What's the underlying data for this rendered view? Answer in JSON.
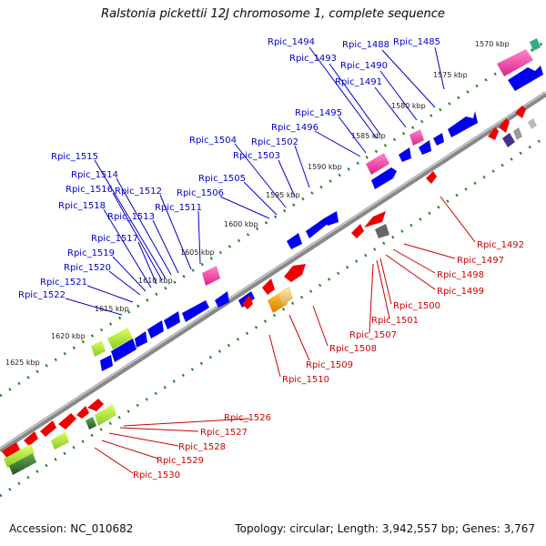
{
  "title": "Ralstonia pickettii 12J chromosome 1, complete sequence",
  "accession": "Accession: NC_010682",
  "summary": "Topology: circular; Length: 3,942,557 bp; Genes: 3,767",
  "colors": {
    "forward_label": "#0000cc",
    "reverse_label": "#cc0000",
    "forward_gene": "#0000ee",
    "reverse_gene": "#ee0000",
    "backbone": "#888888",
    "tick": "#228822",
    "rna_magenta": "#ee3399",
    "lime": "#aadd33",
    "dark_green": "#337733",
    "orange": "#ee8800"
  },
  "kbp_ticks": [
    "1570 kbp",
    "1575 kbp",
    "1580 kbp",
    "1585 kbp",
    "1590 kbp",
    "1595 kbp",
    "1600 kbp",
    "1605 kbp",
    "1610 kbp",
    "1615 kbp",
    "1620 kbp",
    "1625 kbp"
  ],
  "forward_labels": [
    "Rpic_1485",
    "Rpic_1488",
    "Rpic_1490",
    "Rpic_1491",
    "Rpic_1493",
    "Rpic_1494",
    "Rpic_1495",
    "Rpic_1496",
    "Rpic_1502",
    "Rpic_1503",
    "Rpic_1504",
    "Rpic_1505",
    "Rpic_1506",
    "Rpic_1511",
    "Rpic_1512",
    "Rpic_1513",
    "Rpic_1514",
    "Rpic_1515",
    "Rpic_1516",
    "Rpic_1517",
    "Rpic_1518",
    "Rpic_1519",
    "Rpic_1520",
    "Rpic_1521",
    "Rpic_1522"
  ],
  "reverse_labels": [
    "Rpic_1492",
    "Rpic_1497",
    "Rpic_1498",
    "Rpic_1499",
    "Rpic_1500",
    "Rpic_1501",
    "Rpic_1507",
    "Rpic_1508",
    "Rpic_1509",
    "Rpic_1510",
    "Rpic_1526",
    "Rpic_1527",
    "Rpic_1528",
    "Rpic_1529",
    "Rpic_1530"
  ]
}
